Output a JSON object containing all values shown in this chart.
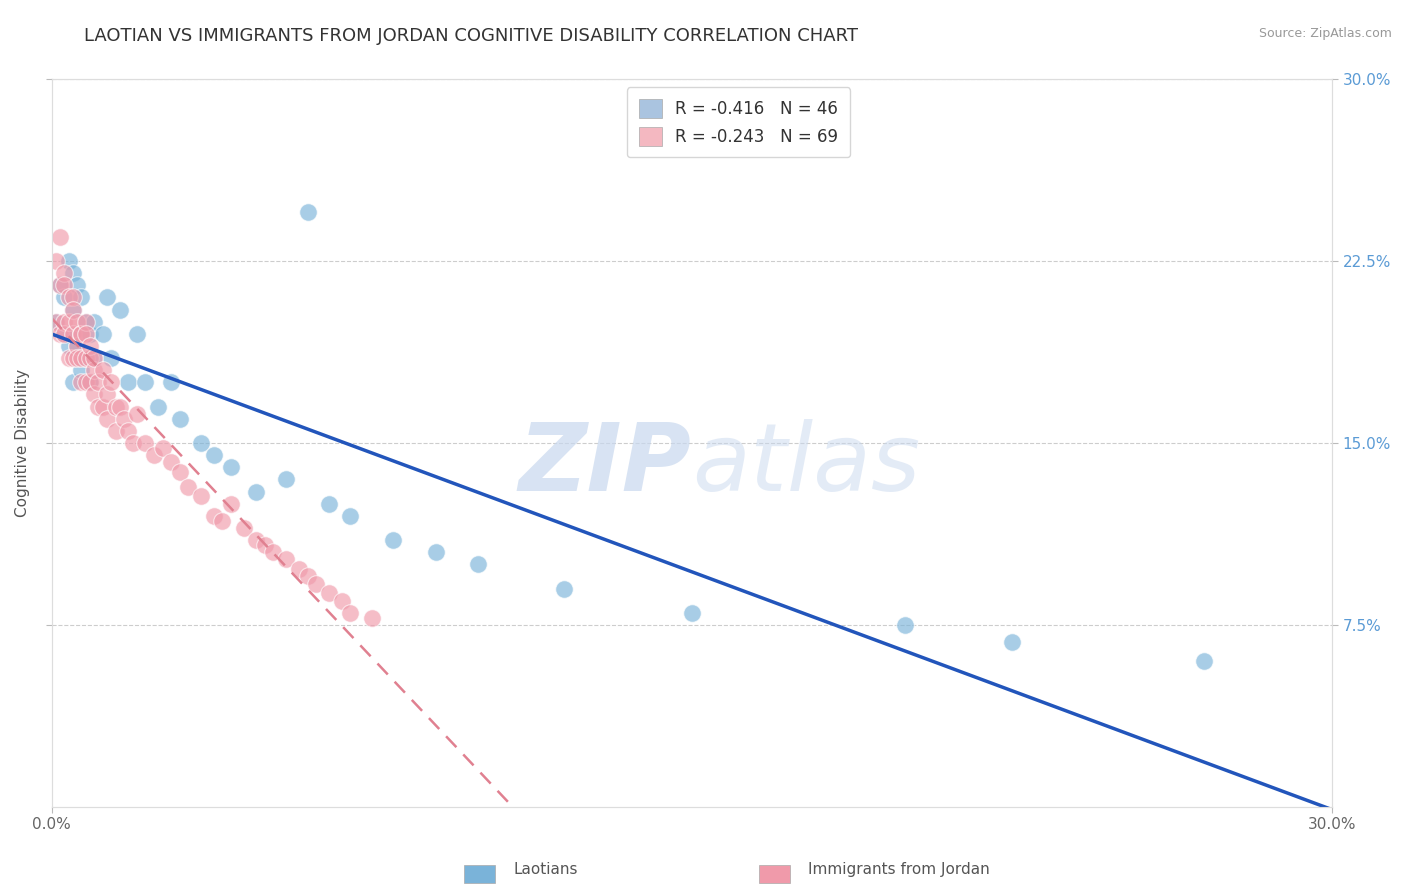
{
  "title": "LAOTIAN VS IMMIGRANTS FROM JORDAN COGNITIVE DISABILITY CORRELATION CHART",
  "source": "Source: ZipAtlas.com",
  "ylabel": "Cognitive Disability",
  "xlim": [
    0.0,
    0.3
  ],
  "ylim": [
    0.0,
    0.3
  ],
  "ytick_positions": [
    0.075,
    0.15,
    0.225,
    0.3
  ],
  "ytick_labels": [
    "7.5%",
    "15.0%",
    "22.5%",
    "30.0%"
  ],
  "grid_color": "#c8c8c8",
  "background_color": "#ffffff",
  "watermark_zip": "ZIP",
  "watermark_atlas": "atlas",
  "legend_entries": [
    {
      "label": "R = -0.416   N = 46",
      "facecolor": "#aac4e0"
    },
    {
      "label": "R = -0.243   N = 69",
      "facecolor": "#f4b8c1"
    }
  ],
  "laotian_color": "#7ab3d9",
  "jordan_color": "#f09aaa",
  "trend_blue": "#2255bb",
  "trend_pink": "#e08090",
  "laotian_x": [
    0.001,
    0.002,
    0.003,
    0.003,
    0.004,
    0.004,
    0.005,
    0.005,
    0.005,
    0.006,
    0.006,
    0.007,
    0.007,
    0.007,
    0.008,
    0.008,
    0.009,
    0.009,
    0.01,
    0.01,
    0.012,
    0.013,
    0.014,
    0.016,
    0.018,
    0.02,
    0.022,
    0.025,
    0.028,
    0.03,
    0.035,
    0.038,
    0.042,
    0.048,
    0.055,
    0.06,
    0.065,
    0.07,
    0.08,
    0.09,
    0.1,
    0.12,
    0.15,
    0.2,
    0.225,
    0.27
  ],
  "laotian_y": [
    0.2,
    0.215,
    0.21,
    0.195,
    0.225,
    0.19,
    0.205,
    0.22,
    0.175,
    0.215,
    0.19,
    0.21,
    0.195,
    0.18,
    0.2,
    0.185,
    0.195,
    0.175,
    0.2,
    0.185,
    0.195,
    0.21,
    0.185,
    0.205,
    0.175,
    0.195,
    0.175,
    0.165,
    0.175,
    0.16,
    0.15,
    0.145,
    0.14,
    0.13,
    0.135,
    0.245,
    0.125,
    0.12,
    0.11,
    0.105,
    0.1,
    0.09,
    0.08,
    0.075,
    0.068,
    0.06
  ],
  "jordan_x": [
    0.001,
    0.001,
    0.002,
    0.002,
    0.002,
    0.003,
    0.003,
    0.003,
    0.003,
    0.004,
    0.004,
    0.004,
    0.005,
    0.005,
    0.005,
    0.005,
    0.006,
    0.006,
    0.006,
    0.007,
    0.007,
    0.007,
    0.007,
    0.008,
    0.008,
    0.008,
    0.008,
    0.009,
    0.009,
    0.009,
    0.01,
    0.01,
    0.01,
    0.011,
    0.011,
    0.012,
    0.012,
    0.013,
    0.013,
    0.014,
    0.015,
    0.015,
    0.016,
    0.017,
    0.018,
    0.019,
    0.02,
    0.022,
    0.024,
    0.026,
    0.028,
    0.03,
    0.032,
    0.035,
    0.038,
    0.04,
    0.042,
    0.045,
    0.048,
    0.05,
    0.052,
    0.055,
    0.058,
    0.06,
    0.062,
    0.065,
    0.068,
    0.07,
    0.075
  ],
  "jordan_y": [
    0.225,
    0.2,
    0.215,
    0.195,
    0.235,
    0.22,
    0.2,
    0.215,
    0.195,
    0.21,
    0.2,
    0.185,
    0.21,
    0.195,
    0.205,
    0.185,
    0.2,
    0.19,
    0.185,
    0.195,
    0.185,
    0.175,
    0.195,
    0.2,
    0.185,
    0.175,
    0.195,
    0.185,
    0.175,
    0.19,
    0.18,
    0.17,
    0.185,
    0.175,
    0.165,
    0.18,
    0.165,
    0.17,
    0.16,
    0.175,
    0.165,
    0.155,
    0.165,
    0.16,
    0.155,
    0.15,
    0.162,
    0.15,
    0.145,
    0.148,
    0.142,
    0.138,
    0.132,
    0.128,
    0.12,
    0.118,
    0.125,
    0.115,
    0.11,
    0.108,
    0.105,
    0.102,
    0.098,
    0.095,
    0.092,
    0.088,
    0.085,
    0.08,
    0.078
  ],
  "title_fontsize": 13,
  "axis_label_fontsize": 11,
  "tick_fontsize": 11,
  "legend_fontsize": 12
}
